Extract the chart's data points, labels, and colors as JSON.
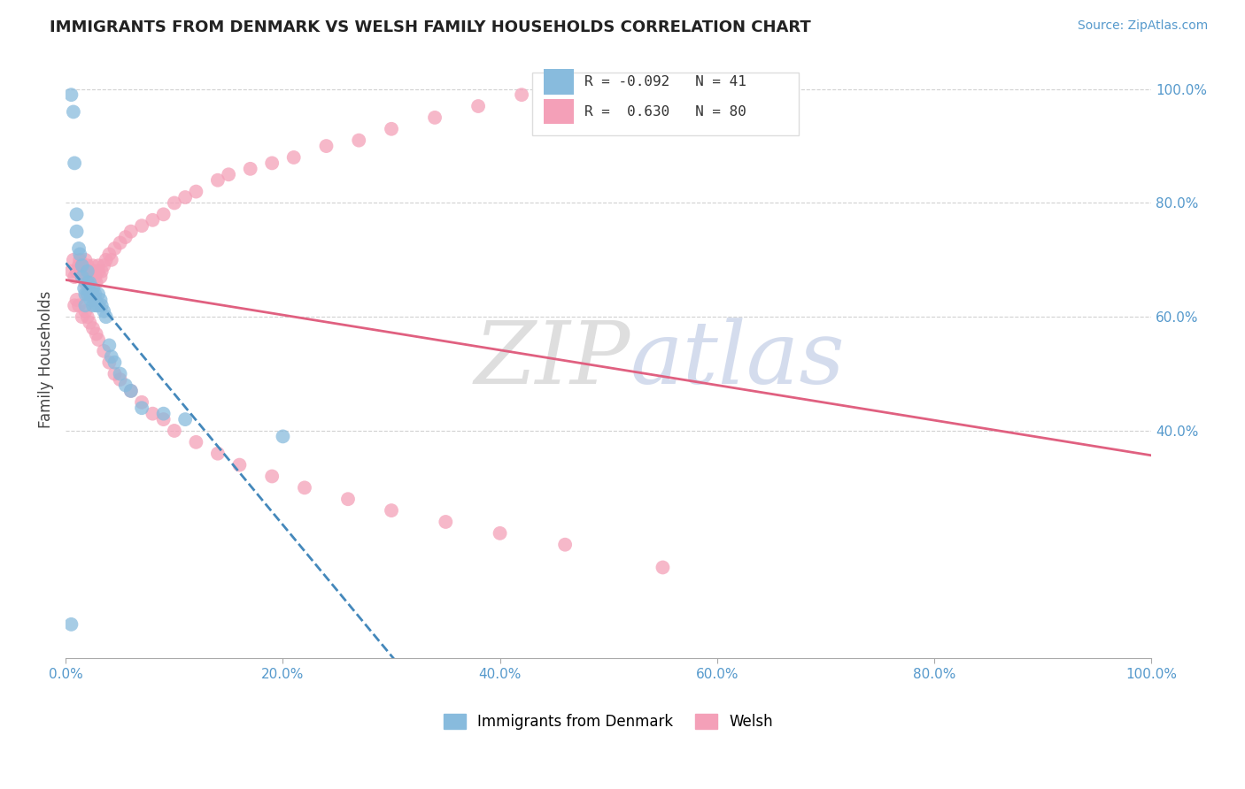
{
  "title": "IMMIGRANTS FROM DENMARK VS WELSH FAMILY HOUSEHOLDS CORRELATION CHART",
  "source_text": "Source: ZipAtlas.com",
  "ylabel": "Family Households",
  "watermark_zip": "ZIP",
  "watermark_atlas": "atlas",
  "legend_blue_label": "Immigrants from Denmark",
  "legend_pink_label": "Welsh",
  "blue_R": -0.092,
  "blue_N": 41,
  "pink_R": 0.63,
  "pink_N": 80,
  "blue_color": "#88bbdd",
  "pink_color": "#f4a0b8",
  "blue_line_color": "#4488bb",
  "pink_line_color": "#e06080",
  "background_color": "#ffffff",
  "grid_color": "#cccccc",
  "blue_x": [
    0.005,
    0.007,
    0.008,
    0.01,
    0.01,
    0.012,
    0.013,
    0.015,
    0.015,
    0.017,
    0.018,
    0.018,
    0.02,
    0.02,
    0.02,
    0.022,
    0.022,
    0.023,
    0.025,
    0.025,
    0.025,
    0.027,
    0.027,
    0.028,
    0.03,
    0.03,
    0.032,
    0.033,
    0.035,
    0.037,
    0.04,
    0.042,
    0.045,
    0.05,
    0.055,
    0.06,
    0.07,
    0.09,
    0.11,
    0.2,
    0.005
  ],
  "blue_y": [
    0.99,
    0.96,
    0.87,
    0.78,
    0.75,
    0.72,
    0.71,
    0.69,
    0.67,
    0.65,
    0.64,
    0.62,
    0.68,
    0.66,
    0.64,
    0.66,
    0.64,
    0.63,
    0.65,
    0.64,
    0.62,
    0.64,
    0.63,
    0.62,
    0.64,
    0.62,
    0.63,
    0.62,
    0.61,
    0.6,
    0.55,
    0.53,
    0.52,
    0.5,
    0.48,
    0.47,
    0.44,
    0.43,
    0.42,
    0.39,
    0.06
  ],
  "pink_x": [
    0.005,
    0.007,
    0.008,
    0.01,
    0.012,
    0.013,
    0.015,
    0.015,
    0.017,
    0.018,
    0.018,
    0.02,
    0.02,
    0.022,
    0.022,
    0.023,
    0.025,
    0.025,
    0.027,
    0.027,
    0.028,
    0.03,
    0.03,
    0.032,
    0.033,
    0.035,
    0.037,
    0.04,
    0.042,
    0.045,
    0.05,
    0.055,
    0.06,
    0.07,
    0.08,
    0.09,
    0.1,
    0.11,
    0.12,
    0.14,
    0.15,
    0.17,
    0.19,
    0.21,
    0.24,
    0.27,
    0.3,
    0.34,
    0.38,
    0.42,
    0.008,
    0.01,
    0.012,
    0.015,
    0.018,
    0.02,
    0.022,
    0.025,
    0.028,
    0.03,
    0.035,
    0.04,
    0.045,
    0.05,
    0.06,
    0.07,
    0.08,
    0.09,
    0.1,
    0.12,
    0.14,
    0.16,
    0.19,
    0.22,
    0.26,
    0.3,
    0.35,
    0.4,
    0.46,
    0.55
  ],
  "pink_y": [
    0.68,
    0.7,
    0.67,
    0.68,
    0.69,
    0.7,
    0.67,
    0.69,
    0.68,
    0.7,
    0.66,
    0.69,
    0.67,
    0.68,
    0.66,
    0.67,
    0.68,
    0.69,
    0.67,
    0.68,
    0.66,
    0.69,
    0.68,
    0.67,
    0.68,
    0.69,
    0.7,
    0.71,
    0.7,
    0.72,
    0.73,
    0.74,
    0.75,
    0.76,
    0.77,
    0.78,
    0.8,
    0.81,
    0.82,
    0.84,
    0.85,
    0.86,
    0.87,
    0.88,
    0.9,
    0.91,
    0.93,
    0.95,
    0.97,
    0.99,
    0.62,
    0.63,
    0.62,
    0.6,
    0.61,
    0.6,
    0.59,
    0.58,
    0.57,
    0.56,
    0.54,
    0.52,
    0.5,
    0.49,
    0.47,
    0.45,
    0.43,
    0.42,
    0.4,
    0.38,
    0.36,
    0.34,
    0.32,
    0.3,
    0.28,
    0.26,
    0.24,
    0.22,
    0.2,
    0.16
  ]
}
